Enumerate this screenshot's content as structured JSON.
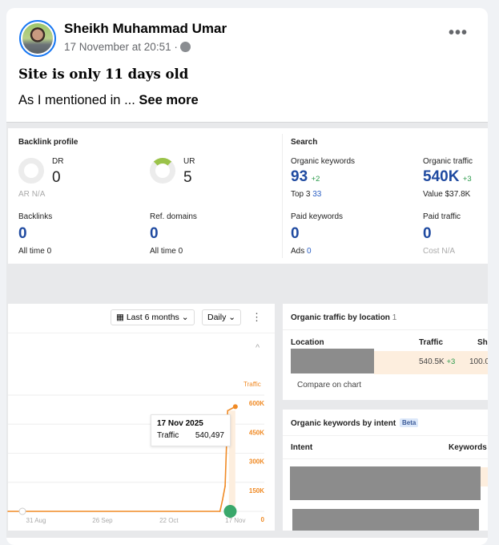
{
  "post": {
    "author": "Sheikh Muhammad Umar",
    "timestamp": "17 November at 20:51",
    "separator": "·",
    "privacy_icon": "globe-icon",
    "more_icon": "more-options-icon",
    "more_label": "•••",
    "headline": "Site is only 11 days old",
    "body_text": "As I mentioned in ... ",
    "see_more": "See more"
  },
  "ahrefs": {
    "backlink_profile": {
      "title": "Backlink profile",
      "dr_label": "DR",
      "dr_value": "0",
      "ar_label": "AR",
      "ar_value": "N/A",
      "ur_label": "UR",
      "ur_value": "5",
      "backlinks_label": "Backlinks",
      "backlinks_value": "0",
      "backlinks_alltime_label": "All time",
      "backlinks_alltime": "0",
      "refdomains_label": "Ref. domains",
      "refdomains_value": "0",
      "refdomains_alltime_label": "All time",
      "refdomains_alltime": "0"
    },
    "search": {
      "title": "Search",
      "ok_label": "Organic keywords",
      "ok_value": "93",
      "ok_delta": "+2",
      "top3_label": "Top 3",
      "top3_value": "33",
      "ot_label": "Organic traffic",
      "ot_value": "540K",
      "ot_delta": "+3",
      "value_label": "Value",
      "value_value": "$37.8K",
      "pk_label": "Paid keywords",
      "pk_value": "0",
      "ads_label": "Ads",
      "ads_value": "0",
      "pt_label": "Paid traffic",
      "pt_value": "0",
      "cost_label": "Cost",
      "cost_value": "N/A"
    },
    "controls": {
      "range": "Last 6 months",
      "interval": "Daily",
      "range_icon": "calendar-icon",
      "kebab": "⋮",
      "collapse": "^"
    },
    "tooltip": {
      "date": "17 Nov 2025",
      "label": "Traffic",
      "value": "540,497"
    },
    "location": {
      "title": "Organic traffic by location",
      "count": "1",
      "headers": [
        "Location",
        "Traffic",
        "Sh"
      ],
      "row": {
        "traffic": "540.5K",
        "delta": "+3",
        "share": "100.0"
      },
      "compare": "Compare on chart"
    },
    "intent": {
      "title": "Organic keywords by intent",
      "badge": "Beta",
      "headers": [
        "Intent",
        "Keywords"
      ]
    }
  },
  "chart_data": {
    "type": "area",
    "ylabel": "Traffic",
    "y_ticks": [
      "0",
      "150K",
      "300K",
      "450K",
      "600K"
    ],
    "x_ticks": [
      "31 Aug",
      "26 Sep",
      "22 Oct",
      "17 Nov"
    ],
    "ylim": [
      0,
      600000
    ],
    "grid": true,
    "color": "#f08a24",
    "series": [
      {
        "points": [
          {
            "x": "2025-08-20",
            "y": 0
          },
          {
            "x": "2025-11-11",
            "y": 0
          },
          {
            "x": "2025-11-12",
            "y": 60000
          },
          {
            "x": "2025-11-13",
            "y": 130000
          },
          {
            "x": "2025-11-14",
            "y": 520000
          },
          {
            "x": "2025-11-17",
            "y": 540497
          }
        ]
      }
    ]
  }
}
